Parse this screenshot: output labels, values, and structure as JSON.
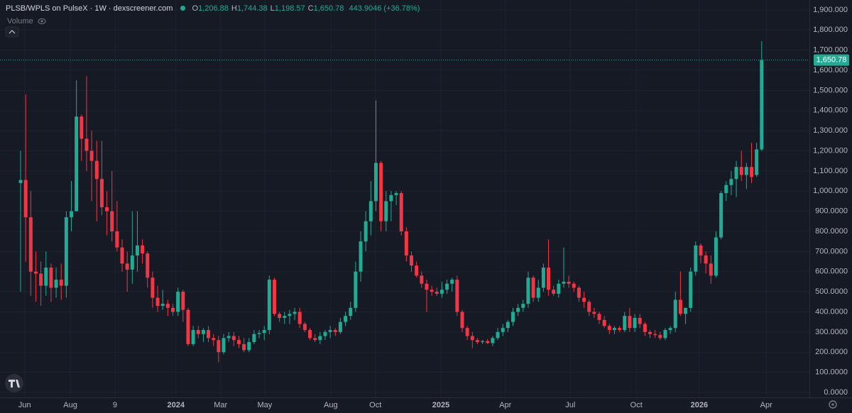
{
  "chart_data": {
    "type": "candlestick",
    "title": "PLSB/WPLS on PulseX · 1W · dexscreener.com",
    "ohlc_legend": [
      {
        "key": "O",
        "value": "1,206.88"
      },
      {
        "key": "H",
        "value": "1,744.38"
      },
      {
        "key": "L",
        "value": "1,198.57"
      },
      {
        "key": "C",
        "value": "1,650.78"
      }
    ],
    "change_label": "443.9046 (+36.78%)",
    "volume_label": "Volume",
    "last_price_label": "1,650.78",
    "up_color": "#22ab94",
    "down_color": "#f23645",
    "grid": true,
    "open": [
      1040,
      1055,
      870,
      600,
      590,
      530,
      620,
      520,
      560,
      530,
      870,
      900,
      1370,
      1260,
      1200,
      1150,
      1060,
      920,
      900,
      800,
      720,
      640,
      610,
      680,
      730,
      690,
      570,
      470,
      430,
      440,
      420,
      400,
      500,
      410,
      240,
      310,
      290,
      310,
      270,
      260,
      200,
      270,
      280,
      260,
      240,
      210,
      250,
      290,
      295,
      310,
      560,
      390,
      370,
      380,
      390,
      400,
      340,
      310,
      270,
      260,
      280,
      300,
      310,
      300,
      350,
      380,
      420,
      600,
      750,
      850,
      950,
      1140,
      850,
      950,
      980,
      990,
      800,
      680,
      630,
      580,
      540,
      510,
      500,
      490,
      510,
      540,
      560,
      400,
      320,
      280,
      260,
      250,
      255,
      245,
      270,
      300,
      320,
      350,
      400,
      420,
      440,
      570,
      470,
      520,
      620,
      510,
      490,
      540,
      550,
      540,
      520,
      470,
      450,
      400,
      390,
      360,
      330,
      310,
      320,
      310,
      380,
      320,
      370,
      340,
      300,
      290,
      285,
      270,
      310,
      320,
      460,
      390,
      420,
      600,
      730,
      680,
      640,
      580,
      770,
      990,
      1030,
      1060,
      1120,
      1080,
      1120,
      1080,
      1206.88
    ],
    "high": [
      1200,
      1480,
      1000,
      700,
      650,
      700,
      640,
      620,
      640,
      900,
      1050,
      1550,
      1380,
      1570,
      1300,
      1250,
      1250,
      1000,
      1100,
      950,
      760,
      700,
      900,
      900,
      760,
      700,
      600,
      530,
      510,
      460,
      440,
      520,
      510,
      420,
      330,
      330,
      320,
      330,
      290,
      280,
      290,
      300,
      300,
      280,
      270,
      270,
      310,
      310,
      330,
      580,
      570,
      400,
      400,
      410,
      420,
      420,
      350,
      320,
      290,
      300,
      310,
      330,
      320,
      370,
      400,
      450,
      650,
      800,
      900,
      1050,
      1450,
      1150,
      1000,
      1000,
      1000,
      1000,
      820,
      700,
      650,
      600,
      560,
      530,
      520,
      550,
      560,
      570,
      580,
      410,
      330,
      300,
      270,
      260,
      265,
      280,
      320,
      340,
      360,
      420,
      440,
      460,
      600,
      580,
      560,
      640,
      760,
      530,
      560,
      720,
      580,
      550,
      530,
      500,
      460,
      420,
      400,
      380,
      340,
      330,
      330,
      400,
      420,
      390,
      390,
      350,
      310,
      310,
      300,
      320,
      330,
      500,
      600,
      420,
      620,
      750,
      740,
      700,
      680,
      800,
      1000,
      1050,
      1100,
      1150,
      1200,
      1140,
      1240,
      1240,
      1744.38
    ],
    "low": [
      500,
      650,
      480,
      450,
      430,
      480,
      450,
      470,
      460,
      470,
      800,
      900,
      1150,
      1100,
      950,
      850,
      880,
      780,
      750,
      700,
      600,
      500,
      540,
      600,
      640,
      520,
      420,
      400,
      410,
      380,
      380,
      380,
      350,
      230,
      230,
      270,
      250,
      250,
      230,
      150,
      190,
      250,
      230,
      220,
      200,
      200,
      240,
      270,
      260,
      290,
      380,
      350,
      340,
      340,
      360,
      320,
      300,
      260,
      250,
      240,
      260,
      270,
      280,
      290,
      330,
      360,
      400,
      550,
      700,
      780,
      900,
      800,
      800,
      850,
      930,
      780,
      650,
      600,
      570,
      520,
      400,
      480,
      480,
      470,
      490,
      500,
      380,
      300,
      260,
      220,
      240,
      240,
      240,
      230,
      260,
      280,
      300,
      330,
      380,
      400,
      420,
      450,
      450,
      500,
      480,
      480,
      470,
      520,
      520,
      500,
      450,
      420,
      380,
      370,
      340,
      320,
      290,
      290,
      300,
      300,
      300,
      300,
      320,
      280,
      270,
      270,
      260,
      260,
      290,
      300,
      380,
      340,
      400,
      580,
      640,
      590,
      540,
      570,
      760,
      950,
      980,
      970,
      1050,
      1010,
      1040,
      1070,
      1198.57
    ],
    "close": [
      1055,
      870,
      600,
      590,
      530,
      620,
      520,
      560,
      530,
      870,
      900,
      1370,
      1260,
      1200,
      1150,
      1060,
      920,
      900,
      800,
      720,
      640,
      610,
      680,
      730,
      690,
      570,
      470,
      430,
      440,
      420,
      400,
      500,
      410,
      240,
      310,
      290,
      310,
      270,
      260,
      200,
      270,
      280,
      260,
      240,
      210,
      250,
      290,
      295,
      310,
      560,
      390,
      370,
      380,
      390,
      400,
      340,
      310,
      270,
      260,
      280,
      300,
      310,
      300,
      350,
      380,
      420,
      600,
      750,
      850,
      950,
      1140,
      850,
      950,
      980,
      990,
      800,
      680,
      630,
      580,
      540,
      510,
      500,
      490,
      510,
      540,
      560,
      400,
      320,
      280,
      260,
      250,
      255,
      245,
      270,
      300,
      320,
      350,
      400,
      420,
      440,
      570,
      470,
      520,
      620,
      510,
      490,
      540,
      550,
      540,
      520,
      470,
      450,
      400,
      390,
      360,
      330,
      310,
      320,
      310,
      380,
      320,
      370,
      340,
      300,
      290,
      285,
      270,
      310,
      320,
      460,
      390,
      420,
      600,
      730,
      680,
      640,
      580,
      770,
      990,
      1030,
      1060,
      1120,
      1080,
      1120,
      1070,
      1207,
      1650.78
    ],
    "xlim": [
      -4.06,
      155.4
    ],
    "xticks": [
      {
        "value": 0.8,
        "label": "Jun"
      },
      {
        "value": 9.8,
        "label": "Aug"
      },
      {
        "value": 18.6,
        "label": "9"
      },
      {
        "value": 30.6,
        "label": "2024"
      },
      {
        "value": 39.4,
        "label": "Mar"
      },
      {
        "value": 48.1,
        "label": "May"
      },
      {
        "value": 61.1,
        "label": "Aug"
      },
      {
        "value": 69.9,
        "label": "Oct"
      },
      {
        "value": 82.8,
        "label": "2025"
      },
      {
        "value": 95.5,
        "label": "Apr"
      },
      {
        "value": 108.3,
        "label": "Jul"
      },
      {
        "value": 121.3,
        "label": "Oct"
      },
      {
        "value": 133.7,
        "label": "2026"
      },
      {
        "value": 146.9,
        "label": "Apr"
      }
    ],
    "ylim": [
      -24.7,
      1949
    ],
    "yticks": [
      {
        "value": 0,
        "label": "0.0000"
      },
      {
        "value": 100,
        "label": "100.0000"
      },
      {
        "value": 200,
        "label": "200.0000"
      },
      {
        "value": 300,
        "label": "300.0000"
      },
      {
        "value": 400,
        "label": "400.0000"
      },
      {
        "value": 500,
        "label": "500.0000"
      },
      {
        "value": 600,
        "label": "600.0000"
      },
      {
        "value": 700,
        "label": "700.0000"
      },
      {
        "value": 800,
        "label": "800.0000"
      },
      {
        "value": 900,
        "label": "900.0000"
      },
      {
        "value": 1000,
        "label": "1,000.000"
      },
      {
        "value": 1100,
        "label": "1,100.000"
      },
      {
        "value": 1200,
        "label": "1,200.000"
      },
      {
        "value": 1300,
        "label": "1,300.000"
      },
      {
        "value": 1400,
        "label": "1,400.000"
      },
      {
        "value": 1500,
        "label": "1,500.000"
      },
      {
        "value": 1600,
        "label": "1,600.000"
      },
      {
        "value": 1700,
        "label": "1,700.000"
      },
      {
        "value": 1800,
        "label": "1,800.000"
      },
      {
        "value": 1900,
        "label": "1,900.000"
      }
    ]
  }
}
